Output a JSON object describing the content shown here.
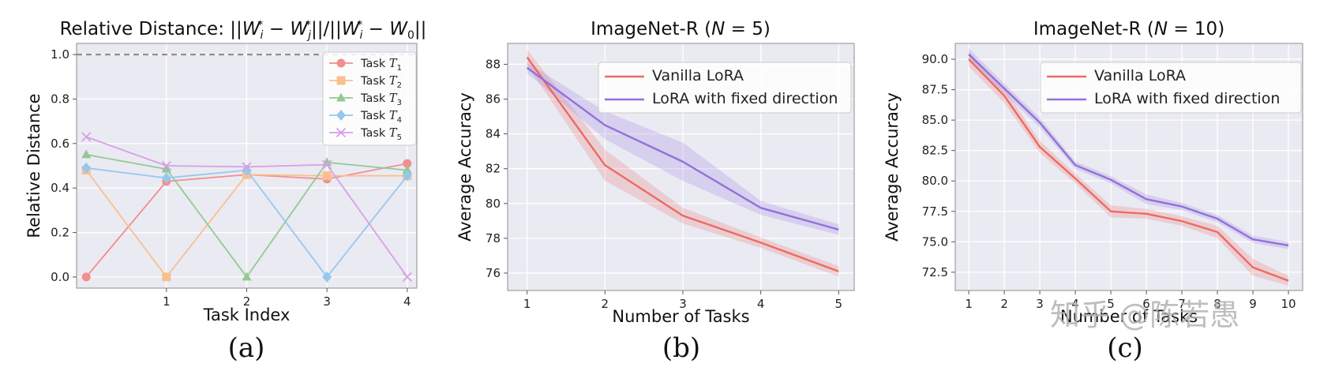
{
  "chart_data": [
    {
      "panel": "(a)",
      "type": "line",
      "title": "Relative Distance: ||W_i^* − W_j^*||/||W_i^* − W_0||",
      "xlabel": "Task Index",
      "ylabel": "Relative Distance",
      "xlim": [
        -0.12,
        4.12
      ],
      "ylim": [
        -0.05,
        1.05
      ],
      "xticks": [
        1,
        2,
        3,
        4
      ],
      "yticks": [
        0.0,
        0.2,
        0.4,
        0.6,
        0.8,
        1.0
      ],
      "ytick_labels": [
        "0.0",
        "0.2",
        "0.4",
        "0.6",
        "0.8",
        "1.0"
      ],
      "reference_line": {
        "y": 1.0,
        "style": "dashed",
        "color": "#888888"
      },
      "x": [
        0,
        1,
        2,
        3,
        4
      ],
      "grid": true,
      "legend_position": "upper-right",
      "series": [
        {
          "name": "Task T1",
          "sub": "1",
          "color": "#f28e8e",
          "marker": "circle",
          "values": [
            0.0,
            0.43,
            0.46,
            0.44,
            0.51
          ]
        },
        {
          "name": "Task T2",
          "sub": "2",
          "color": "#f9c08f",
          "marker": "square",
          "values": [
            0.48,
            0.0,
            0.46,
            0.455,
            0.455
          ]
        },
        {
          "name": "Task T3",
          "sub": "3",
          "color": "#93c993",
          "marker": "triangle",
          "values": [
            0.55,
            0.485,
            0.0,
            0.515,
            0.48
          ]
        },
        {
          "name": "Task T4",
          "sub": "4",
          "color": "#96c8ee",
          "marker": "diamond",
          "values": [
            0.49,
            0.445,
            0.48,
            0.0,
            0.455
          ]
        },
        {
          "name": "Task T5",
          "sub": "5",
          "color": "#d6a0e6",
          "marker": "x",
          "values": [
            0.63,
            0.5,
            0.495,
            0.505,
            0.0
          ]
        }
      ]
    },
    {
      "panel": "(b)",
      "type": "line",
      "title": "ImageNet-R (N = 5)",
      "xlabel": "Number of Tasks",
      "ylabel": "Average Accuracy",
      "xlim": [
        0.75,
        5.2
      ],
      "ylim": [
        75.0,
        89.2
      ],
      "xticks": [
        1,
        2,
        3,
        4,
        5
      ],
      "yticks": [
        76,
        78,
        80,
        82,
        84,
        86,
        88
      ],
      "ytick_labels": [
        "76",
        "78",
        "80",
        "82",
        "84",
        "86",
        "88"
      ],
      "x": [
        1,
        2,
        3,
        4,
        5
      ],
      "grid": true,
      "legend_position": "upper-right",
      "series": [
        {
          "name": "Vanilla LoRA",
          "color": "#ee6a60",
          "values": [
            88.4,
            82.2,
            79.3,
            77.75,
            76.1
          ],
          "band": [
            0.45,
            0.9,
            0.45,
            0.3,
            0.3
          ]
        },
        {
          "name": "LoRA with fixed direction",
          "color": "#9370db",
          "values": [
            87.8,
            84.5,
            82.4,
            79.75,
            78.5
          ],
          "band": [
            0.3,
            0.8,
            1.1,
            0.4,
            0.3
          ]
        }
      ]
    },
    {
      "panel": "(c)",
      "type": "line",
      "title": "ImageNet-R (N = 10)",
      "xlabel": "Number of Tasks",
      "ylabel": "Average Accuracy",
      "xlim": [
        0.62,
        10.4
      ],
      "ylim": [
        71.0,
        91.3
      ],
      "xticks": [
        1,
        2,
        3,
        4,
        5,
        6,
        7,
        8,
        9,
        10
      ],
      "yticks": [
        72.5,
        75.0,
        77.5,
        80.0,
        82.5,
        85.0,
        87.5,
        90.0
      ],
      "ytick_labels": [
        "72.5",
        "75.0",
        "77.5",
        "80.0",
        "82.5",
        "85.0",
        "87.5",
        "90.0"
      ],
      "x": [
        1,
        2,
        3,
        4,
        5,
        6,
        7,
        8,
        9,
        10
      ],
      "grid": true,
      "legend_position": "upper-right",
      "series": [
        {
          "name": "Vanilla LoRA",
          "color": "#ee6a60",
          "values": [
            90.0,
            87.0,
            82.8,
            80.2,
            77.5,
            77.3,
            76.7,
            75.8,
            72.9,
            71.8
          ],
          "band": [
            0.6,
            0.6,
            0.5,
            0.4,
            0.5,
            0.4,
            0.4,
            0.5,
            0.7,
            0.4
          ]
        },
        {
          "name": "LoRA with fixed direction",
          "color": "#9370db",
          "values": [
            90.4,
            87.6,
            84.8,
            81.3,
            80.1,
            78.5,
            77.9,
            76.9,
            75.2,
            74.7
          ],
          "band": [
            0.5,
            0.4,
            0.4,
            0.3,
            0.3,
            0.4,
            0.3,
            0.3,
            0.3,
            0.3
          ]
        }
      ]
    }
  ],
  "panel_letters": [
    "(a)",
    "(b)",
    "(c)"
  ],
  "watermark": "知乎 @陈若愚"
}
